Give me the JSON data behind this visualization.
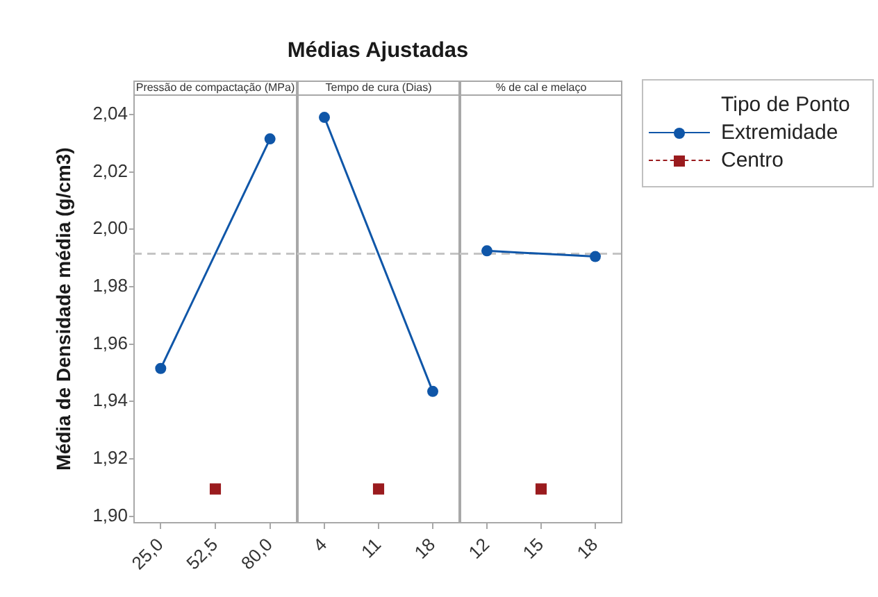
{
  "chart_data": [
    {
      "type": "line",
      "subtitle": "Pressão de compactação (MPa)",
      "ylabel": "Média de Densidade média (g/cm3)",
      "xlim": [
        11.25,
        93.75
      ],
      "xticks": [
        {
          "value": 25,
          "label": "25,0"
        },
        {
          "value": 52.5,
          "label": "52,5"
        },
        {
          "value": 80,
          "label": "80,0"
        }
      ],
      "ylim": [
        1.8975,
        2.047
      ],
      "yticks": [
        {
          "value": 1.9,
          "label": "1,90"
        },
        {
          "value": 1.92,
          "label": "1,92"
        },
        {
          "value": 1.94,
          "label": "1,94"
        },
        {
          "value": 1.96,
          "label": "1,96"
        },
        {
          "value": 1.98,
          "label": "1,98"
        },
        {
          "value": 2.0,
          "label": "2,00"
        },
        {
          "value": 2.02,
          "label": "2,02"
        },
        {
          "value": 2.04,
          "label": "2,04"
        }
      ],
      "legend": "right",
      "legend_title": "Tipo de Ponto",
      "series": [
        {
          "name": "Extremidade",
          "color": "#0f56a8",
          "x": [
            25,
            80
          ],
          "values": [
            1.9515,
            2.0315
          ],
          "marker": "circle",
          "line_style": "solid"
        },
        {
          "name": "Centro",
          "color": "#9a1b1e",
          "x": [
            52.5
          ],
          "values": [
            1.9095
          ],
          "marker": "square",
          "line_style": "dashed"
        }
      ],
      "ref_lines": [
        {
          "axis": "y",
          "value": 1.9915,
          "color": "#c4c4c4",
          "line_style": "dashed"
        }
      ]
    },
    {
      "type": "line",
      "title": "Médias Ajustadas",
      "subtitle": "Tempo de cura (Dias)",
      "xlim": [
        0.5,
        21.5
      ],
      "xticks": [
        4,
        11,
        18
      ],
      "ylim": [
        1.8975,
        2.047
      ],
      "tick_labels": "x",
      "series": [
        {
          "color": "#0f56a8",
          "x": [
            4,
            18
          ],
          "values": [
            2.039,
            1.9435
          ],
          "marker": "circle",
          "line_style": "solid"
        },
        {
          "color": "#9a1b1e",
          "x": [
            11
          ],
          "values": [
            1.9095
          ],
          "marker": "square",
          "line_style": "dashed"
        }
      ],
      "ref_lines": [
        {
          "axis": "y",
          "value": 1.9915,
          "color": "#c4c4c4",
          "line_style": "dashed"
        }
      ]
    },
    {
      "type": "line",
      "subtitle": "% de cal e melaço",
      "xlim": [
        10.5,
        19.5
      ],
      "xticks": [
        12,
        15,
        18
      ],
      "ylim": [
        1.8975,
        2.047
      ],
      "tick_labels": "x",
      "series": [
        {
          "color": "#0f56a8",
          "x": [
            12,
            18
          ],
          "values": [
            1.9925,
            1.9905
          ],
          "marker": "circle",
          "line_style": "solid"
        },
        {
          "color": "#9a1b1e",
          "x": [
            15
          ],
          "values": [
            1.9095
          ],
          "marker": "square",
          "line_style": "dashed"
        }
      ],
      "ref_lines": [
        {
          "axis": "y",
          "value": 1.9915,
          "color": "#c4c4c4",
          "line_style": "dashed"
        }
      ]
    }
  ]
}
